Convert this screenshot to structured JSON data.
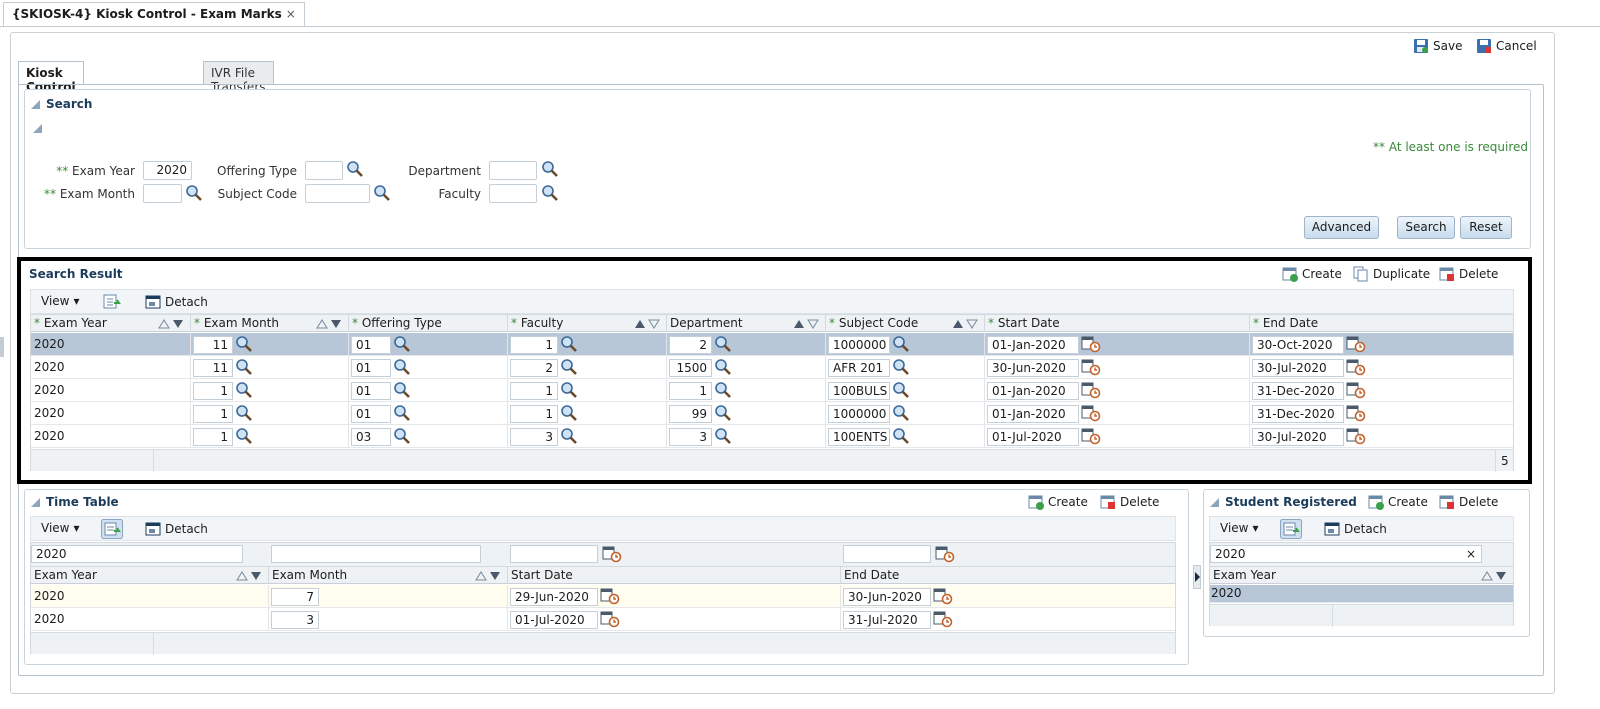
{
  "page_tab": {
    "title": "{SKIOSK-4} Kiosk Control - Exam Marks",
    "close": "×"
  },
  "top_actions": {
    "save": "Save",
    "cancel": "Cancel"
  },
  "sub_tabs": [
    "Kiosk Control - Exam Marks",
    "IVR File Transfers"
  ],
  "search": {
    "title": "Search",
    "required_note": "** At least one is required",
    "req_marker": "**",
    "fields": {
      "exam_year": {
        "label": "Exam Year",
        "value": "2020"
      },
      "exam_month": {
        "label": "Exam Month",
        "value": ""
      },
      "offering_type": {
        "label": "Offering Type",
        "value": ""
      },
      "subject_code": {
        "label": "Subject Code",
        "value": ""
      },
      "department": {
        "label": "Department",
        "value": ""
      },
      "faculty": {
        "label": "Faculty",
        "value": ""
      }
    },
    "buttons": {
      "advanced": "Advanced",
      "search": "Search",
      "reset": "Reset"
    }
  },
  "search_result": {
    "title": "Search Result",
    "actions": {
      "create": "Create",
      "duplicate": "Duplicate",
      "delete": "Delete"
    },
    "toolbar": {
      "view": "View",
      "detach": "Detach"
    },
    "columns": [
      "Exam Year",
      "Exam Month",
      "Offering Type",
      "Faculty",
      "Department",
      "Subject Code",
      "Start Date",
      "End Date"
    ],
    "req_marker": "*",
    "rows": [
      {
        "exam_year": "2020",
        "exam_month": "11",
        "offering_type": "01",
        "faculty": "1",
        "department": "2",
        "subject_code": "1000000",
        "start_date": "01-Jan-2020",
        "end_date": "30-Oct-2020"
      },
      {
        "exam_year": "2020",
        "exam_month": "11",
        "offering_type": "01",
        "faculty": "2",
        "department": "1500",
        "subject_code": "AFR 201",
        "start_date": "30-Jun-2020",
        "end_date": "30-Jul-2020"
      },
      {
        "exam_year": "2020",
        "exam_month": "1",
        "offering_type": "01",
        "faculty": "1",
        "department": "1",
        "subject_code": "100BULS",
        "start_date": "01-Jan-2020",
        "end_date": "31-Dec-2020"
      },
      {
        "exam_year": "2020",
        "exam_month": "1",
        "offering_type": "01",
        "faculty": "1",
        "department": "99",
        "subject_code": "1000000",
        "start_date": "01-Jan-2020",
        "end_date": "31-Dec-2020"
      },
      {
        "exam_year": "2020",
        "exam_month": "1",
        "offering_type": "03",
        "faculty": "3",
        "department": "3",
        "subject_code": "100ENTS",
        "start_date": "01-Jul-2020",
        "end_date": "30-Jul-2020"
      }
    ],
    "count": "5"
  },
  "time_table": {
    "title": "Time Table",
    "actions": {
      "create": "Create",
      "delete": "Delete"
    },
    "toolbar": {
      "view": "View",
      "detach": "Detach"
    },
    "filter": {
      "exam_year": "2020",
      "exam_month": "",
      "start_date": "",
      "end_date": ""
    },
    "columns": [
      "Exam Year",
      "Exam Month",
      "Start Date",
      "End Date"
    ],
    "rows": [
      {
        "exam_year": "2020",
        "exam_month": "7",
        "start_date": "29-Jun-2020",
        "end_date": "30-Jun-2020"
      },
      {
        "exam_year": "2020",
        "exam_month": "3",
        "start_date": "01-Jul-2020",
        "end_date": "31-Jul-2020"
      }
    ]
  },
  "student_registered": {
    "title": "Student Registered",
    "actions": {
      "create": "Create",
      "delete": "Delete"
    },
    "toolbar": {
      "view": "View",
      "detach": "Detach"
    },
    "filter": {
      "exam_year": "2020",
      "clear": "×"
    },
    "columns": [
      "Exam Year"
    ],
    "rows": [
      {
        "exam_year": "2020"
      }
    ]
  }
}
